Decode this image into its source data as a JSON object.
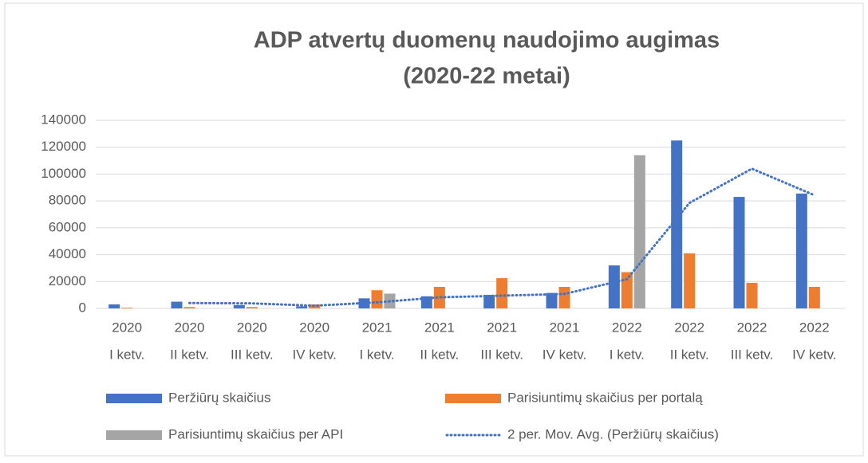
{
  "chart_data": {
    "type": "bar",
    "title": [
      "ADP atvertų duomenų naudojimo augimas",
      "(2020-22 metai)"
    ],
    "categories": [
      [
        "2020",
        "I ketv."
      ],
      [
        "2020",
        "II ketv."
      ],
      [
        "2020",
        "III ketv."
      ],
      [
        "2020",
        "IV ketv."
      ],
      [
        "2021",
        "I ketv."
      ],
      [
        "2021",
        "II ketv."
      ],
      [
        "2021",
        "III ketv."
      ],
      [
        "2021",
        "IV ketv."
      ],
      [
        "2022",
        "I ketv."
      ],
      [
        "2022",
        "II ketv."
      ],
      [
        "2022",
        "III ketv."
      ],
      [
        "2022",
        "IV ketv."
      ]
    ],
    "series": [
      {
        "name": "Peržiūrų skaičius",
        "color": "#4472c4",
        "type": "bar",
        "values": [
          3000,
          5000,
          2500,
          1500,
          7500,
          9000,
          10000,
          11500,
          32000,
          125000,
          83000,
          85500
        ]
      },
      {
        "name": "Parisiuntimų skaičius per portalą",
        "color": "#ed7d31",
        "type": "bar",
        "values": [
          500,
          1000,
          1000,
          3000,
          13500,
          16000,
          22500,
          16000,
          27000,
          41000,
          19000,
          16000
        ]
      },
      {
        "name": "Parisiuntimų skaičius per API",
        "color": "#a5a5a5",
        "type": "bar",
        "values": [
          null,
          null,
          null,
          null,
          11000,
          null,
          null,
          null,
          114000,
          null,
          null,
          null
        ]
      },
      {
        "name": "2 per. Mov. Avg. (Peržiūrų skaičius)",
        "color": "#4472c4",
        "type": "line",
        "dashed": true,
        "values": [
          null,
          4000,
          3750,
          2000,
          4500,
          8250,
          9500,
          10750,
          21750,
          78500,
          104000,
          84250
        ]
      }
    ],
    "ylim": [
      0,
      140000
    ],
    "yticks": [
      0,
      20000,
      40000,
      60000,
      80000,
      100000,
      120000,
      140000
    ],
    "grid": true
  }
}
